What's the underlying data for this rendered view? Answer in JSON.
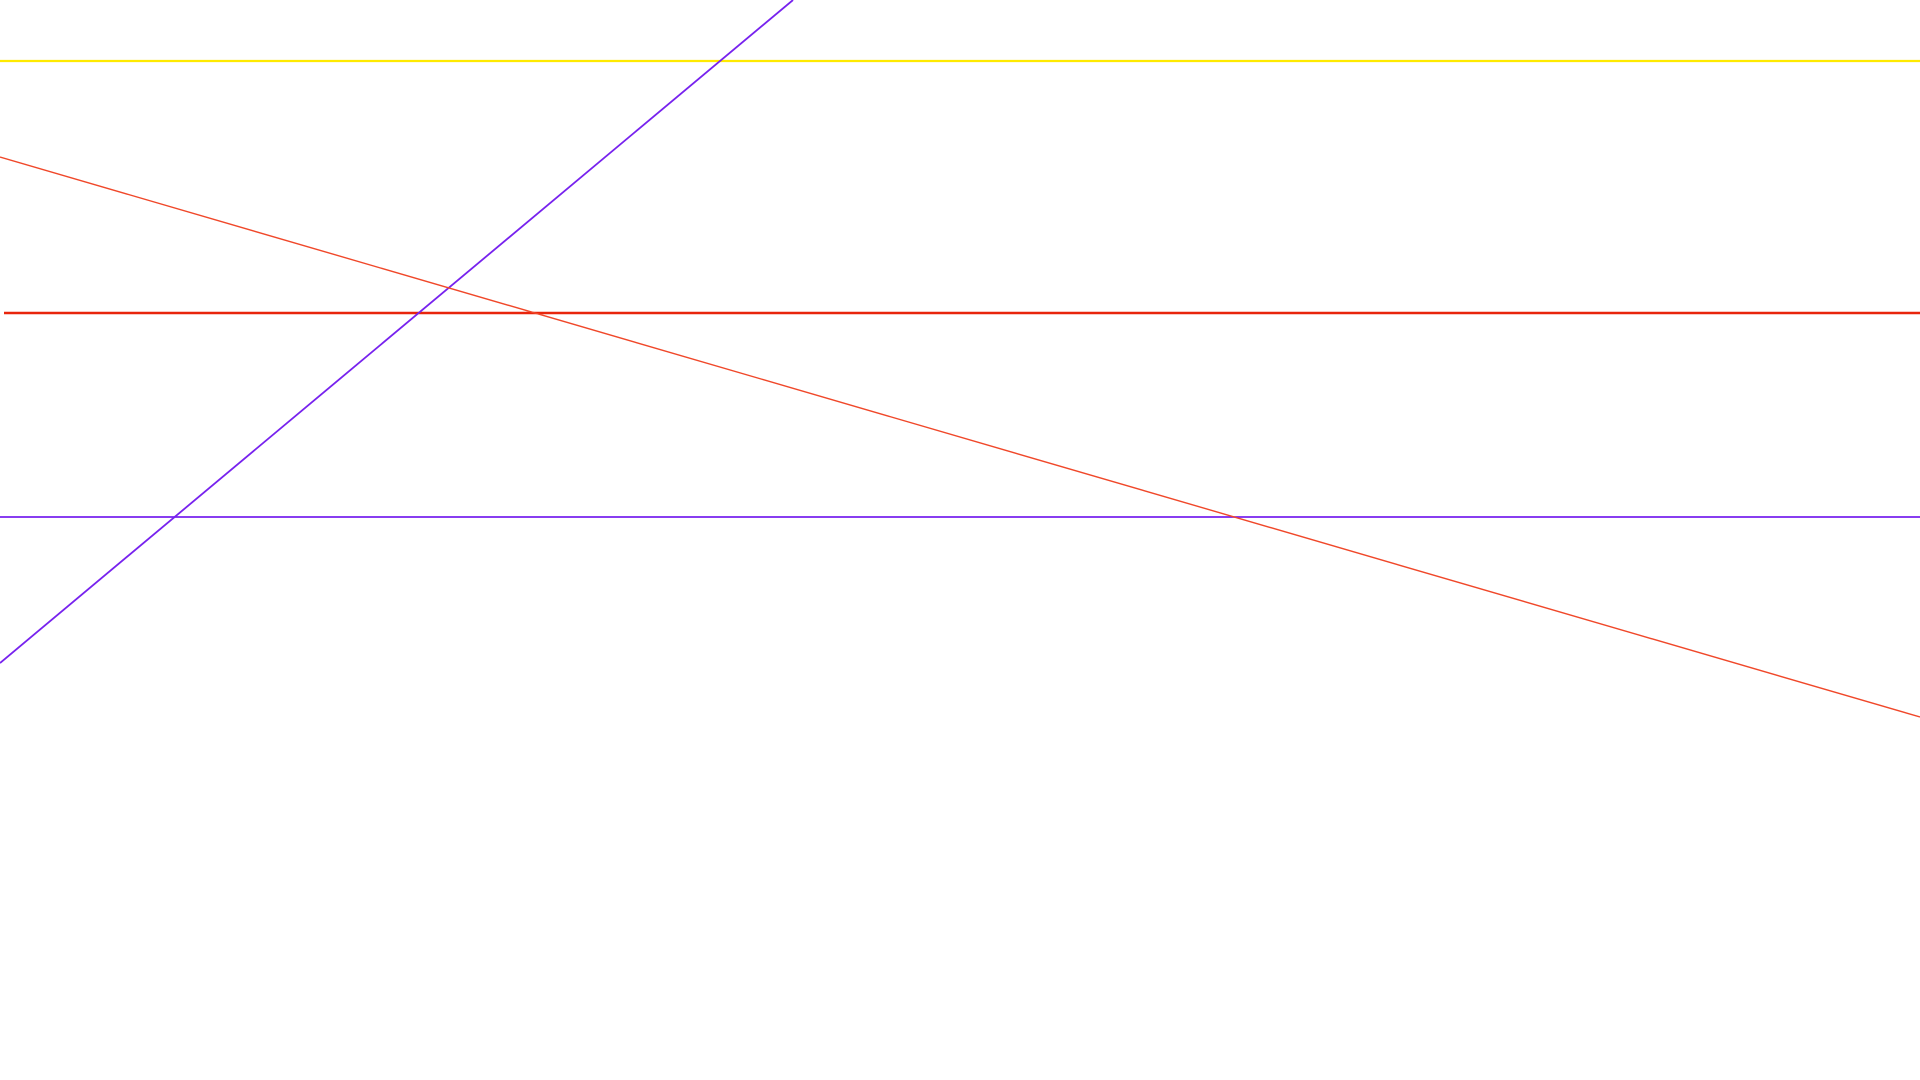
{
  "background_color": "#ffffff",
  "lines": [
    {
      "name": "yellow-horizontal-line",
      "color": "#ffea00",
      "orientation": "horizontal"
    },
    {
      "name": "red-horizontal-line",
      "color": "#e8250c",
      "orientation": "horizontal"
    },
    {
      "name": "purple-horizontal-line",
      "color": "#7722ee",
      "orientation": "horizontal"
    },
    {
      "name": "purple-diagonal-line",
      "color": "#7722ee",
      "orientation": "rising"
    },
    {
      "name": "red-diagonal-line",
      "color": "#f0482a",
      "orientation": "falling"
    }
  ]
}
